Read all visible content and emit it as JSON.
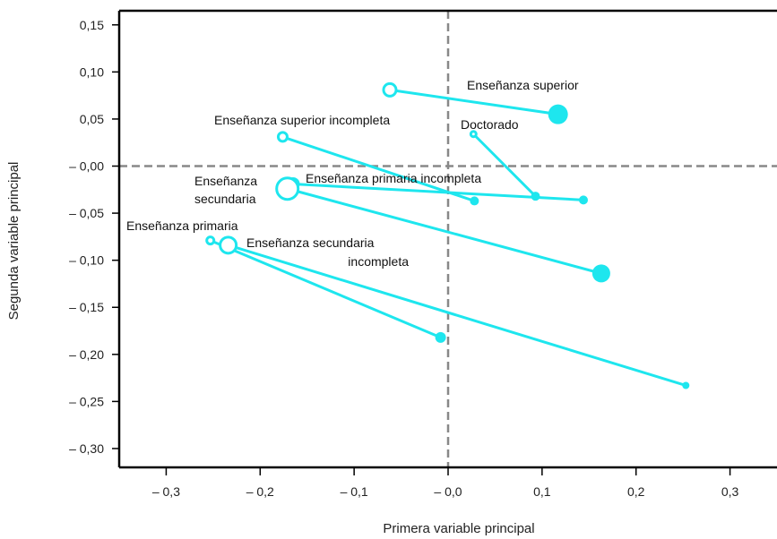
{
  "chart_data": {
    "type": "scatter",
    "title": "",
    "xlabel": "Primera variable principal",
    "ylabel": "Segunda variable principal",
    "xlim": [
      -0.35,
      0.35
    ],
    "ylim": [
      -0.32,
      0.165
    ],
    "x_ticks": [
      {
        "value": -0.3,
        "label": "– 0,3"
      },
      {
        "value": -0.2,
        "label": "– 0,2"
      },
      {
        "value": -0.1,
        "label": "– 0,1"
      },
      {
        "value": 0.0,
        "label": "– 0,0"
      },
      {
        "value": 0.1,
        "label": "0,1"
      },
      {
        "value": 0.2,
        "label": "0,2"
      },
      {
        "value": 0.3,
        "label": "0,3"
      }
    ],
    "y_ticks": [
      {
        "value": 0.15,
        "label": "0,15"
      },
      {
        "value": 0.1,
        "label": "0,10"
      },
      {
        "value": 0.05,
        "label": "0,05"
      },
      {
        "value": 0.0,
        "label": "– 0,00"
      },
      {
        "value": -0.05,
        "label": "– 0,05"
      },
      {
        "value": -0.1,
        "label": "– 0,10"
      },
      {
        "value": -0.15,
        "label": "– 0,15"
      },
      {
        "value": -0.2,
        "label": "– 0,20"
      },
      {
        "value": -0.25,
        "label": "– 0,25"
      },
      {
        "value": -0.3,
        "label": "– 0,30"
      }
    ],
    "reference_lines": {
      "x": 0.0,
      "y": 0.0,
      "style": "dashed"
    },
    "grid": false,
    "series_color": "#1ee6ee",
    "reference_color": "#888888",
    "categories": [
      {
        "label": "Enseñanza superior",
        "open": {
          "x": -0.062,
          "y": 0.081,
          "size": 7
        },
        "filled": {
          "x": 0.117,
          "y": 0.055,
          "size": 11
        }
      },
      {
        "label": "Enseñanza superior incompleta",
        "open": {
          "x": -0.176,
          "y": 0.031,
          "size": 5
        },
        "filled": {
          "x": 0.028,
          "y": -0.037,
          "size": 5
        }
      },
      {
        "label": "Doctorado",
        "open": {
          "x": 0.027,
          "y": 0.034,
          "size": 3
        },
        "filled": {
          "x": 0.093,
          "y": -0.032,
          "size": 5
        }
      },
      {
        "label": "Enseñanza primaria incompleta",
        "open": {
          "x": -0.165,
          "y": -0.019,
          "size": 6
        },
        "filled": {
          "x": 0.144,
          "y": -0.036,
          "size": 5
        }
      },
      {
        "label": "Enseñanza secundaria",
        "open": {
          "x": -0.171,
          "y": -0.024,
          "size": 12
        },
        "filled": {
          "x": 0.163,
          "y": -0.114,
          "size": 10
        }
      },
      {
        "label": "Enseñanza primaria",
        "open": {
          "x": -0.253,
          "y": -0.079,
          "size": 4
        },
        "filled": {
          "x": -0.008,
          "y": -0.182,
          "size": 6
        }
      },
      {
        "label": "Enseñanza secundaria incompleta",
        "open": {
          "x": -0.234,
          "y": -0.084,
          "size": 9
        },
        "filled": {
          "x": 0.253,
          "y": -0.233,
          "size": 4
        }
      }
    ]
  },
  "labels": [
    {
      "lines": [
        "Enseñanza superior"
      ],
      "anchor": "start"
    },
    {
      "lines": [
        "Enseñanza superior incompleta"
      ],
      "anchor": "start"
    },
    {
      "lines": [
        "Doctorado"
      ],
      "anchor": "start"
    },
    {
      "lines": [
        "Enseñanza primaria incompleta"
      ],
      "anchor": "start"
    },
    {
      "lines": [
        "Enseñanza",
        "secundaria"
      ],
      "anchor": "start"
    },
    {
      "lines": [
        "Enseñanza primaria"
      ],
      "anchor": "start"
    },
    {
      "lines": [
        "Enseñanza secundaria",
        "incompleta"
      ],
      "anchor": "end"
    }
  ]
}
